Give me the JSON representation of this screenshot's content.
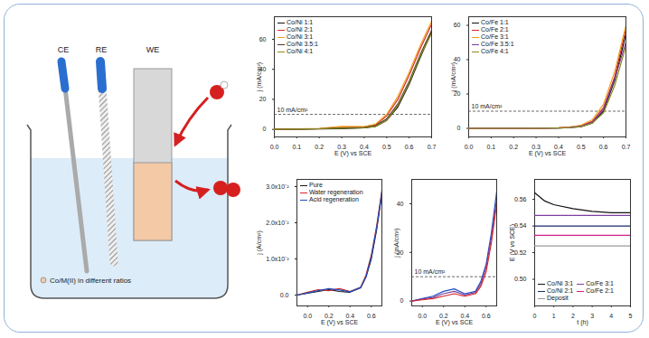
{
  "diagram": {
    "electrodes": [
      "CE",
      "RE",
      "WE"
    ],
    "caption": "Co/M(II) in different ratios"
  },
  "chart_data": [
    {
      "type": "line",
      "x_label": "E (V) vs SCE",
      "y_label": "j (mA/cm²)",
      "legend": "upper left",
      "x": [
        0.0,
        0.1,
        0.2,
        0.3,
        0.4,
        0.45,
        0.5,
        0.55,
        0.6,
        0.65,
        0.7
      ],
      "xlim": [
        0.0,
        0.7
      ],
      "xticks": [
        {
          "value": 0,
          "label": "0.0"
        },
        0.1,
        0.2,
        0.3,
        0.4,
        0.5,
        0.6,
        0.7
      ],
      "ylim": [
        -5,
        75
      ],
      "yticks": [
        0,
        20,
        40,
        60
      ],
      "annotations": [
        {
          "y": 10,
          "text": "10 mA/cm²"
        }
      ],
      "series": [
        {
          "name": "Co/Ni 1:1",
          "color": "#111111",
          "values": [
            0,
            0.2,
            0.3,
            0.5,
            1,
            2,
            6,
            15,
            30,
            48,
            65
          ]
        },
        {
          "name": "Co/Ni 2:1",
          "color": "#d62728",
          "values": [
            0,
            0.3,
            0.5,
            1.5,
            1.5,
            3,
            9,
            20,
            36,
            54,
            70
          ]
        },
        {
          "name": "Co/Ni 3:1",
          "color": "#f0a020",
          "values": [
            0,
            0.3,
            0.6,
            2,
            1.8,
            3.5,
            10,
            22,
            38,
            56,
            72
          ]
        },
        {
          "name": "Co/Ni 3.5:1",
          "color": "#4b3a2a",
          "values": [
            0,
            0.2,
            0.4,
            1,
            1.2,
            2.5,
            7,
            17,
            32,
            50,
            66
          ]
        },
        {
          "name": "Co/Ni 4:1",
          "color": "#8a8a20",
          "values": [
            0,
            0.2,
            0.4,
            0.8,
            1,
            2,
            6,
            16,
            31,
            49,
            64
          ]
        }
      ]
    },
    {
      "type": "line",
      "x_label": "E (V) vs SCE",
      "y_label": "j (mA/cm²)",
      "legend": "upper left",
      "x": [
        0.0,
        0.1,
        0.2,
        0.3,
        0.4,
        0.45,
        0.5,
        0.55,
        0.6,
        0.65,
        0.7
      ],
      "xlim": [
        0.0,
        0.7
      ],
      "xticks": [
        {
          "value": 0,
          "label": "0.0"
        },
        0.1,
        0.2,
        0.3,
        0.4,
        0.5,
        0.6,
        0.7
      ],
      "ylim": [
        -5,
        65
      ],
      "yticks": [
        0,
        20,
        40,
        60
      ],
      "annotations": [
        {
          "y": 10,
          "text": "10 mA/cm²"
        }
      ],
      "series": [
        {
          "name": "Co/Fe 1:1",
          "color": "#111111",
          "values": [
            0,
            0,
            0,
            0,
            0.2,
            0.5,
            1,
            3,
            10,
            28,
            55
          ]
        },
        {
          "name": "Co/Fe 2:1",
          "color": "#d62728",
          "values": [
            0,
            0,
            0,
            0,
            0.3,
            0.7,
            1.5,
            4,
            12,
            30,
            58
          ]
        },
        {
          "name": "Co/Fe 3:1",
          "color": "#f0a020",
          "values": [
            0,
            0,
            0,
            0.1,
            0.3,
            0.8,
            1.8,
            5,
            14,
            33,
            60
          ]
        },
        {
          "name": "Co/Fe 3.5:1",
          "color": "#7b3fa0",
          "values": [
            0,
            0,
            0,
            0,
            0.2,
            0.5,
            1.2,
            3.5,
            11,
            29,
            50
          ]
        },
        {
          "name": "Co/Fe 4:1",
          "color": "#8a8a20",
          "values": [
            0,
            0,
            0,
            0,
            0.2,
            0.4,
            1,
            3,
            9,
            25,
            48
          ]
        }
      ]
    },
    {
      "type": "line",
      "x_label": "E (V) vs SCE",
      "y_label": "j (A/cm²)",
      "legend": "upper left",
      "x": [
        -0.1,
        0.0,
        0.1,
        0.2,
        0.3,
        0.4,
        0.5,
        0.55,
        0.6,
        0.65,
        0.7
      ],
      "xlim": [
        -0.1,
        0.7
      ],
      "xticks": [
        {
          "value": 0,
          "label": "0.0"
        },
        0.2,
        0.4,
        0.6
      ],
      "ylim": [
        -0.003,
        0.032
      ],
      "yticks": [
        {
          "value": 0,
          "label": "0.0"
        },
        {
          "value": 0.01,
          "label": "1.0x10⁻²"
        },
        {
          "value": 0.02,
          "label": "2.0x10⁻²"
        },
        {
          "value": 0.03,
          "label": "3.0x10⁻²"
        }
      ],
      "series": [
        {
          "name": "Pure",
          "color": "#111111",
          "values": [
            0,
            0.0005,
            0.001,
            0.0015,
            0.001,
            0.0008,
            0.002,
            0.005,
            0.01,
            0.018,
            0.028
          ]
        },
        {
          "name": "Water regeneration",
          "color": "#d62728",
          "values": [
            0,
            0.0008,
            0.0015,
            0.0012,
            0.0018,
            0.001,
            0.0022,
            0.0055,
            0.011,
            0.019,
            0.029
          ]
        },
        {
          "name": "Acid regeneration",
          "color": "#1f4fbf",
          "values": [
            0,
            0.0006,
            0.0012,
            0.0018,
            0.0014,
            0.0009,
            0.0021,
            0.005,
            0.0105,
            0.0185,
            0.0285
          ]
        }
      ]
    },
    {
      "type": "line",
      "x_label": "E (V) vs SCE",
      "y_label": "j (mA/cm²)",
      "x": [
        -0.1,
        0.0,
        0.1,
        0.2,
        0.3,
        0.4,
        0.5,
        0.55,
        0.6,
        0.65,
        0.7
      ],
      "xlim": [
        -0.1,
        0.7
      ],
      "xticks": [
        {
          "value": 0,
          "label": "0.0"
        },
        0.2,
        0.4,
        0.6
      ],
      "ylim": [
        -2,
        50
      ],
      "yticks": [
        0,
        20,
        40
      ],
      "annotations": [
        {
          "y": 10,
          "text": "10 mA/cm²"
        }
      ],
      "series": [
        {
          "color": "#1f4fbf",
          "values": [
            0,
            1,
            2,
            4,
            5,
            3,
            4,
            8,
            15,
            28,
            45
          ]
        },
        {
          "color": "#7b3fa0",
          "values": [
            0,
            0.8,
            1.5,
            3,
            4,
            2.5,
            3.5,
            7,
            14,
            26,
            42
          ]
        },
        {
          "color": "#d62728",
          "values": [
            0,
            0.5,
            1,
            2,
            3,
            2,
            3,
            6,
            12,
            24,
            40
          ]
        }
      ]
    },
    {
      "type": "line",
      "x_label": "t (h)",
      "y_label": "E (V vs SCE)",
      "legend": "lower right",
      "x": [
        0,
        0.5,
        1,
        2,
        3,
        4,
        5
      ],
      "xlim": [
        0,
        5
      ],
      "xticks": [
        0,
        1,
        2,
        3,
        4,
        5
      ],
      "ylim": [
        0.48,
        0.575
      ],
      "yticks": [
        {
          "value": 0.5,
          "label": "0.50"
        },
        {
          "value": 0.52,
          "label": "0.52"
        },
        {
          "value": 0.54,
          "label": "0.54"
        },
        {
          "value": 0.56,
          "label": "0.56"
        }
      ],
      "series": [
        {
          "name": "Co/Ni 3:1",
          "color": "#111111",
          "values": [
            0.565,
            0.559,
            0.556,
            0.553,
            0.551,
            0.55,
            0.55
          ]
        },
        {
          "name": "Co/Fe 3:1",
          "color": "#7b3fa0",
          "values": [
            0.548,
            0.548,
            0.548,
            0.548,
            0.548,
            0.548,
            0.548
          ]
        },
        {
          "name": "Co/Ni 2:1",
          "color": "#1a2a6c",
          "values": [
            0.54,
            0.54,
            0.54,
            0.54,
            0.54,
            0.54,
            0.54
          ]
        },
        {
          "name": "Co/Fe 2:1",
          "color": "#d02090",
          "values": [
            0.533,
            0.533,
            0.533,
            0.533,
            0.533,
            0.533,
            0.533
          ]
        },
        {
          "name": "Deposit",
          "color": "#9a9a9a",
          "values": [
            0.525,
            0.525,
            0.525,
            0.525,
            0.525,
            0.525,
            0.525
          ]
        }
      ]
    }
  ]
}
